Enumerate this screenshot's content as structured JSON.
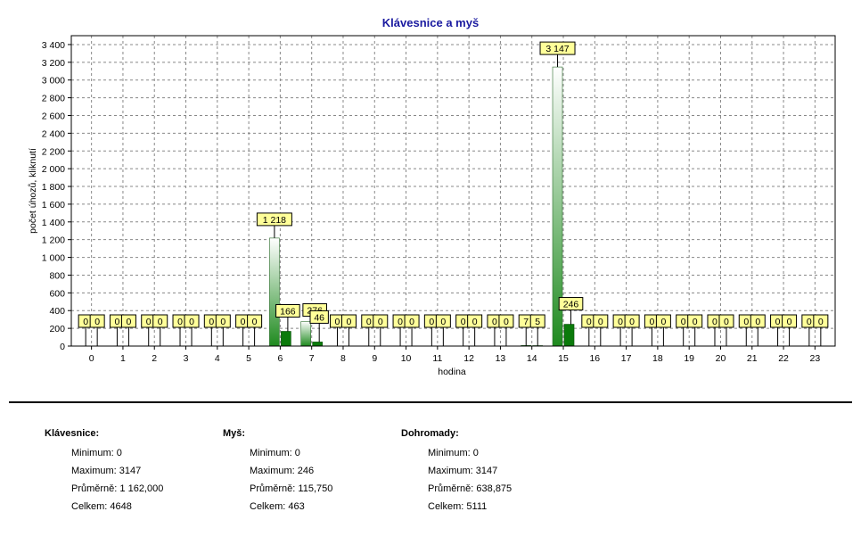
{
  "chart_data": {
    "type": "bar",
    "title": "Klávesnice a myš",
    "xlabel": "hodina",
    "ylabel": "počet úhozů, kliknutí",
    "ylim": [
      0,
      3500
    ],
    "yticks": [
      "0",
      "200",
      "400",
      "600",
      "800",
      "1 000",
      "1 200",
      "1 400",
      "1 600",
      "1 800",
      "2 000",
      "2 200",
      "2 400",
      "2 600",
      "2 800",
      "3 000",
      "3 200",
      "3 400"
    ],
    "categories": [
      "0",
      "1",
      "2",
      "3",
      "4",
      "5",
      "6",
      "7",
      "8",
      "9",
      "10",
      "11",
      "12",
      "13",
      "14",
      "15",
      "16",
      "17",
      "18",
      "19",
      "20",
      "21",
      "22",
      "23"
    ],
    "series": [
      {
        "values": [
          0,
          0,
          0,
          0,
          0,
          0,
          1218,
          276,
          0,
          0,
          0,
          0,
          0,
          0,
          7,
          3147,
          0,
          0,
          0,
          0,
          0,
          0,
          0,
          0
        ],
        "labels": [
          "0",
          "0",
          "0",
          "0",
          "0",
          "0",
          "1 218",
          "276",
          "0",
          "0",
          "0",
          "0",
          "0",
          "0",
          "7",
          "3 147",
          "0",
          "0",
          "0",
          "0",
          "0",
          "0",
          "0",
          "0"
        ],
        "color": "#1e8a1e",
        "fill": "gradient-white-green"
      },
      {
        "values": [
          0,
          0,
          0,
          0,
          0,
          0,
          166,
          46,
          0,
          0,
          0,
          0,
          0,
          0,
          5,
          246,
          0,
          0,
          0,
          0,
          0,
          0,
          0,
          0
        ],
        "labels": [
          "0",
          "0",
          "0",
          "0",
          "0",
          "0",
          "166",
          "46",
          "0",
          "0",
          "0",
          "0",
          "0",
          "0",
          "5",
          "246",
          "0",
          "0",
          "0",
          "0",
          "0",
          "0",
          "0",
          "0"
        ],
        "color": "#0b7a0b",
        "fill": "solid-green"
      }
    ],
    "grid": true,
    "label_color": "#ffff99"
  },
  "stats": {
    "keyboard": {
      "heading": "Klávesnice:",
      "min": "Minimum: 0",
      "max": "Maximum: 3147",
      "avg": "Průměrně: 1 162,000",
      "total": "Celkem: 4648"
    },
    "mouse": {
      "heading": "Myš:",
      "min": "Minimum: 0",
      "max": "Maximum: 246",
      "avg": "Průměrně: 115,750",
      "total": "Celkem: 463"
    },
    "combined": {
      "heading": "Dohromady:",
      "min": "Minimum: 0",
      "max": "Maximum: 3147",
      "avg": "Průměrně: 638,875",
      "total": "Celkem: 5111"
    }
  }
}
